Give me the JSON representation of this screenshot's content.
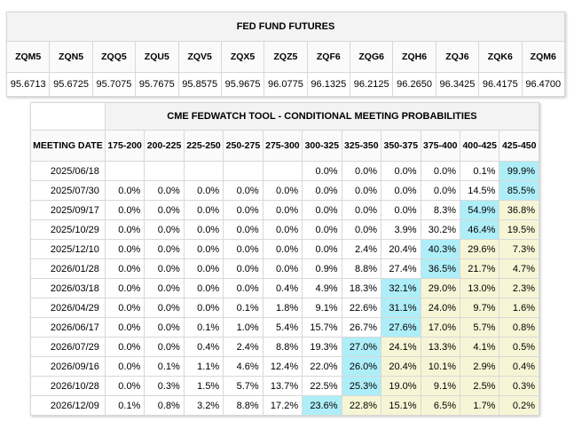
{
  "futures": {
    "title": "FED FUND FUTURES",
    "contracts": [
      "ZQM5",
      "ZQN5",
      "ZQQ5",
      "ZQU5",
      "ZQV5",
      "ZQX5",
      "ZQZ5",
      "ZQF6",
      "ZQG6",
      "ZQH6",
      "ZQJ6",
      "ZQK6",
      "ZQM6"
    ],
    "prices": [
      "95.6713",
      "95.6725",
      "95.7075",
      "95.7675",
      "95.8575",
      "95.9675",
      "96.0775",
      "96.1325",
      "96.2125",
      "96.2650",
      "96.3425",
      "96.4175",
      "96.4700"
    ]
  },
  "fedwatch": {
    "title": "CME FEDWATCH TOOL - CONDITIONAL MEETING PROBABILITIES",
    "date_header": "MEETING DATE",
    "ranges": [
      "175-200",
      "200-225",
      "225-250",
      "250-275",
      "275-300",
      "300-325",
      "325-350",
      "350-375",
      "375-400",
      "400-425",
      "425-450"
    ],
    "colors": {
      "max": "#aeeef8",
      "above": "#f6f6d6",
      "plain": "#ffffff"
    },
    "rows": [
      {
        "date": "2025/06/18",
        "values": [
          "",
          "",
          "",
          "",
          "",
          "0.0%",
          "0.0%",
          "0.0%",
          "0.0%",
          "0.1%",
          "99.9%"
        ],
        "shade": [
          "",
          "",
          "",
          "",
          "",
          "",
          "",
          "",
          "",
          "",
          "c"
        ]
      },
      {
        "date": "2025/07/30",
        "values": [
          "0.0%",
          "0.0%",
          "0.0%",
          "0.0%",
          "0.0%",
          "0.0%",
          "0.0%",
          "0.0%",
          "0.0%",
          "14.5%",
          "85.5%"
        ],
        "shade": [
          "",
          "",
          "",
          "",
          "",
          "",
          "",
          "",
          "",
          "",
          "c"
        ]
      },
      {
        "date": "2025/09/17",
        "values": [
          "0.0%",
          "0.0%",
          "0.0%",
          "0.0%",
          "0.0%",
          "0.0%",
          "0.0%",
          "0.0%",
          "8.3%",
          "54.9%",
          "36.8%"
        ],
        "shade": [
          "",
          "",
          "",
          "",
          "",
          "",
          "",
          "",
          "",
          "c",
          "y"
        ]
      },
      {
        "date": "2025/10/29",
        "values": [
          "0.0%",
          "0.0%",
          "0.0%",
          "0.0%",
          "0.0%",
          "0.0%",
          "0.0%",
          "3.9%",
          "30.2%",
          "46.4%",
          "19.5%"
        ],
        "shade": [
          "",
          "",
          "",
          "",
          "",
          "",
          "",
          "",
          "",
          "c",
          "y"
        ]
      },
      {
        "date": "2025/12/10",
        "values": [
          "0.0%",
          "0.0%",
          "0.0%",
          "0.0%",
          "0.0%",
          "0.0%",
          "2.4%",
          "20.4%",
          "40.3%",
          "29.6%",
          "7.3%"
        ],
        "shade": [
          "",
          "",
          "",
          "",
          "",
          "",
          "",
          "",
          "c",
          "y",
          "y"
        ]
      },
      {
        "date": "2026/01/28",
        "values": [
          "0.0%",
          "0.0%",
          "0.0%",
          "0.0%",
          "0.0%",
          "0.9%",
          "8.8%",
          "27.4%",
          "36.5%",
          "21.7%",
          "4.7%"
        ],
        "shade": [
          "",
          "",
          "",
          "",
          "",
          "",
          "",
          "",
          "c",
          "y",
          "y"
        ]
      },
      {
        "date": "2026/03/18",
        "values": [
          "0.0%",
          "0.0%",
          "0.0%",
          "0.0%",
          "0.4%",
          "4.9%",
          "18.3%",
          "32.1%",
          "29.0%",
          "13.0%",
          "2.3%"
        ],
        "shade": [
          "",
          "",
          "",
          "",
          "",
          "",
          "",
          "c",
          "y",
          "y",
          "y"
        ]
      },
      {
        "date": "2026/04/29",
        "values": [
          "0.0%",
          "0.0%",
          "0.0%",
          "0.1%",
          "1.8%",
          "9.1%",
          "22.6%",
          "31.1%",
          "24.0%",
          "9.7%",
          "1.6%"
        ],
        "shade": [
          "",
          "",
          "",
          "",
          "",
          "",
          "",
          "c",
          "y",
          "y",
          "y"
        ]
      },
      {
        "date": "2026/06/17",
        "values": [
          "0.0%",
          "0.0%",
          "0.1%",
          "1.0%",
          "5.4%",
          "15.7%",
          "26.7%",
          "27.6%",
          "17.0%",
          "5.7%",
          "0.8%"
        ],
        "shade": [
          "",
          "",
          "",
          "",
          "",
          "",
          "",
          "c",
          "y",
          "y",
          "y"
        ]
      },
      {
        "date": "2026/07/29",
        "values": [
          "0.0%",
          "0.0%",
          "0.4%",
          "2.4%",
          "8.8%",
          "19.3%",
          "27.0%",
          "24.1%",
          "13.3%",
          "4.1%",
          "0.5%"
        ],
        "shade": [
          "",
          "",
          "",
          "",
          "",
          "",
          "c",
          "y",
          "y",
          "y",
          "y"
        ]
      },
      {
        "date": "2026/09/16",
        "values": [
          "0.0%",
          "0.1%",
          "1.1%",
          "4.6%",
          "12.4%",
          "22.0%",
          "26.0%",
          "20.4%",
          "10.1%",
          "2.9%",
          "0.4%"
        ],
        "shade": [
          "",
          "",
          "",
          "",
          "",
          "",
          "c",
          "y",
          "y",
          "y",
          "y"
        ]
      },
      {
        "date": "2026/10/28",
        "values": [
          "0.0%",
          "0.3%",
          "1.5%",
          "5.7%",
          "13.7%",
          "22.5%",
          "25.3%",
          "19.0%",
          "9.1%",
          "2.5%",
          "0.3%"
        ],
        "shade": [
          "",
          "",
          "",
          "",
          "",
          "",
          "c",
          "y",
          "y",
          "y",
          "y"
        ]
      },
      {
        "date": "2026/12/09",
        "values": [
          "0.1%",
          "0.8%",
          "3.2%",
          "8.8%",
          "17.2%",
          "23.6%",
          "22.8%",
          "15.1%",
          "6.5%",
          "1.7%",
          "0.2%"
        ],
        "shade": [
          "",
          "",
          "",
          "",
          "",
          "c",
          "y",
          "y",
          "y",
          "y",
          "y"
        ]
      }
    ]
  }
}
